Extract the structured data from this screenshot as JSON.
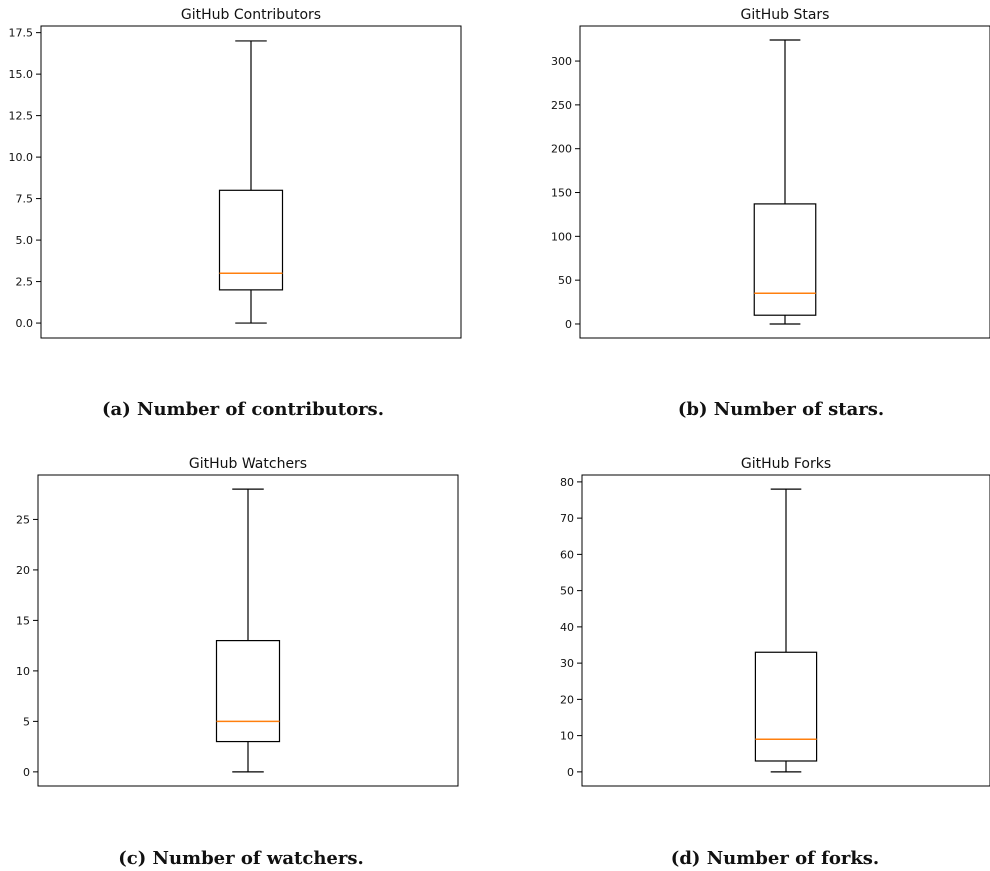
{
  "colors": {
    "box": "#000000",
    "median": "#ff7f0e",
    "background": "#ffffff"
  },
  "chart_data": [
    {
      "type": "box",
      "title": "GitHub Contributors",
      "caption": "(a) Number of contributors.",
      "ylim": [
        -0.9,
        17.9
      ],
      "yticks": [
        0.0,
        2.5,
        5.0,
        7.5,
        10.0,
        12.5,
        15.0,
        17.5
      ],
      "ytick_labels": [
        "0.0",
        "2.5",
        "5.0",
        "7.5",
        "10.0",
        "12.5",
        "15.0",
        "17.5"
      ],
      "box": {
        "whisker_low": 0,
        "q1": 2,
        "median": 3,
        "q3": 8,
        "whisker_high": 17
      }
    },
    {
      "type": "box",
      "title": "GitHub Stars",
      "caption": "(b) Number of stars.",
      "ylim": [
        -16,
        340
      ],
      "yticks": [
        0,
        50,
        100,
        150,
        200,
        250,
        300
      ],
      "ytick_labels": [
        "0",
        "50",
        "100",
        "150",
        "200",
        "250",
        "300"
      ],
      "box": {
        "whisker_low": 0,
        "q1": 10,
        "median": 35,
        "q3": 137,
        "whisker_high": 324
      }
    },
    {
      "type": "box",
      "title": "GitHub Watchers",
      "caption": "(c) Number of watchers.",
      "ylim": [
        -1.4,
        29.4
      ],
      "yticks": [
        0,
        5,
        10,
        15,
        20,
        25
      ],
      "ytick_labels": [
        "0",
        "5",
        "10",
        "15",
        "20",
        "25"
      ],
      "box": {
        "whisker_low": 0,
        "q1": 3,
        "median": 5,
        "q3": 13,
        "whisker_high": 28
      }
    },
    {
      "type": "box",
      "title": "GitHub Forks",
      "caption": "(d) Number of forks.",
      "ylim": [
        -3.9,
        81.9
      ],
      "yticks": [
        0,
        10,
        20,
        30,
        40,
        50,
        60,
        70,
        80
      ],
      "ytick_labels": [
        "0",
        "10",
        "20",
        "30",
        "40",
        "50",
        "60",
        "70",
        "80"
      ],
      "box": {
        "whisker_low": 0,
        "q1": 3,
        "median": 9,
        "q3": 33,
        "whisker_high": 78
      }
    }
  ]
}
